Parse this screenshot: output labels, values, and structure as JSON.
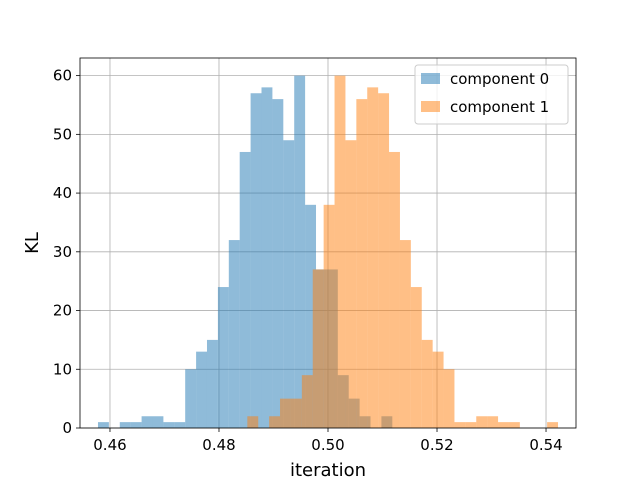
{
  "chart_data": {
    "type": "histogram",
    "xlabel": "iteration",
    "ylabel": "KL",
    "xlim": [
      0.4545,
      0.5455
    ],
    "ylim": [
      0,
      63
    ],
    "grid": true,
    "legend_position": "top-right",
    "x_ticks": [
      0.46,
      0.48,
      0.5,
      0.52,
      0.54
    ],
    "x_tick_labels": [
      "0.46",
      "0.48",
      "0.50",
      "0.52",
      "0.54"
    ],
    "y_ticks": [
      0,
      10,
      20,
      30,
      40,
      50,
      60
    ],
    "y_tick_labels": [
      "0",
      "10",
      "20",
      "30",
      "40",
      "50",
      "60"
    ],
    "series": [
      {
        "name": "component 0",
        "color": "#1f77b4",
        "alpha": 0.5,
        "bins": [
          {
            "x0": 0.4578,
            "x1": 0.4598,
            "count": 1
          },
          {
            "x0": 0.4618,
            "x1": 0.4638,
            "count": 1
          },
          {
            "x0": 0.4638,
            "x1": 0.4658,
            "count": 1
          },
          {
            "x0": 0.4658,
            "x1": 0.4678,
            "count": 2
          },
          {
            "x0": 0.4678,
            "x1": 0.4698,
            "count": 2
          },
          {
            "x0": 0.4698,
            "x1": 0.4718,
            "count": 1
          },
          {
            "x0": 0.4718,
            "x1": 0.4738,
            "count": 1
          },
          {
            "x0": 0.4738,
            "x1": 0.4758,
            "count": 10
          },
          {
            "x0": 0.4758,
            "x1": 0.4778,
            "count": 13
          },
          {
            "x0": 0.4778,
            "x1": 0.4798,
            "count": 15
          },
          {
            "x0": 0.4798,
            "x1": 0.4818,
            "count": 24
          },
          {
            "x0": 0.4818,
            "x1": 0.4838,
            "count": 32
          },
          {
            "x0": 0.4838,
            "x1": 0.4858,
            "count": 47
          },
          {
            "x0": 0.4858,
            "x1": 0.4878,
            "count": 57
          },
          {
            "x0": 0.4878,
            "x1": 0.4898,
            "count": 58
          },
          {
            "x0": 0.4898,
            "x1": 0.4918,
            "count": 56
          },
          {
            "x0": 0.4918,
            "x1": 0.4938,
            "count": 49
          },
          {
            "x0": 0.4938,
            "x1": 0.4958,
            "count": 60
          },
          {
            "x0": 0.4958,
            "x1": 0.4978,
            "count": 38
          },
          {
            "x0": 0.4978,
            "x1": 0.4998,
            "count": 27
          },
          {
            "x0": 0.4998,
            "x1": 0.5018,
            "count": 27
          },
          {
            "x0": 0.5018,
            "x1": 0.5038,
            "count": 9
          },
          {
            "x0": 0.5038,
            "x1": 0.5058,
            "count": 5
          },
          {
            "x0": 0.5058,
            "x1": 0.5078,
            "count": 2
          },
          {
            "x0": 0.5098,
            "x1": 0.5118,
            "count": 2
          }
        ]
      },
      {
        "name": "component 1",
        "color": "#ff7f0e",
        "alpha": 0.5,
        "bins": [
          {
            "x0": 0.4852,
            "x1": 0.4872,
            "count": 2
          },
          {
            "x0": 0.4892,
            "x1": 0.4912,
            "count": 2
          },
          {
            "x0": 0.4912,
            "x1": 0.4932,
            "count": 5
          },
          {
            "x0": 0.4932,
            "x1": 0.4952,
            "count": 5
          },
          {
            "x0": 0.4952,
            "x1": 0.4972,
            "count": 9
          },
          {
            "x0": 0.4972,
            "x1": 0.4992,
            "count": 27
          },
          {
            "x0": 0.4992,
            "x1": 0.5012,
            "count": 38
          },
          {
            "x0": 0.5012,
            "x1": 0.5032,
            "count": 60
          },
          {
            "x0": 0.5032,
            "x1": 0.5052,
            "count": 49
          },
          {
            "x0": 0.5052,
            "x1": 0.5072,
            "count": 56
          },
          {
            "x0": 0.5072,
            "x1": 0.5092,
            "count": 58
          },
          {
            "x0": 0.5092,
            "x1": 0.5112,
            "count": 57
          },
          {
            "x0": 0.5112,
            "x1": 0.5132,
            "count": 47
          },
          {
            "x0": 0.5132,
            "x1": 0.5152,
            "count": 32
          },
          {
            "x0": 0.5152,
            "x1": 0.5172,
            "count": 24
          },
          {
            "x0": 0.5172,
            "x1": 0.5192,
            "count": 15
          },
          {
            "x0": 0.5192,
            "x1": 0.5212,
            "count": 13
          },
          {
            "x0": 0.5212,
            "x1": 0.5232,
            "count": 10
          },
          {
            "x0": 0.5232,
            "x1": 0.5252,
            "count": 1
          },
          {
            "x0": 0.5252,
            "x1": 0.5272,
            "count": 1
          },
          {
            "x0": 0.5272,
            "x1": 0.5292,
            "count": 2
          },
          {
            "x0": 0.5292,
            "x1": 0.5312,
            "count": 2
          },
          {
            "x0": 0.5312,
            "x1": 0.5332,
            "count": 1
          },
          {
            "x0": 0.5332,
            "x1": 0.5352,
            "count": 1
          },
          {
            "x0": 0.5402,
            "x1": 0.5422,
            "count": 1
          }
        ]
      }
    ]
  }
}
